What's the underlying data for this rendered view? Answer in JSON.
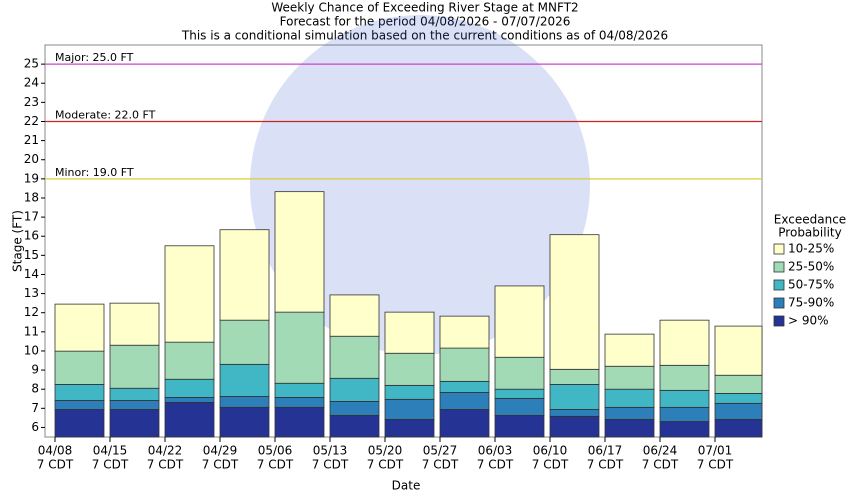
{
  "chart_data": {
    "type": "bar",
    "title": "Weekly Chance of Exceeding River Stage at MNFT2",
    "subtitle": "Forecast for the period 04/08/2026 - 07/07/2026",
    "note": "This is a conditional simulation based on the current conditions as of 04/08/2026",
    "x_label": "Date",
    "y_label": "Stage (FT)",
    "categories": [
      "04/08",
      "04/15",
      "04/22",
      "04/29",
      "05/06",
      "05/13",
      "05/20",
      "05/27",
      "06/03",
      "06/10",
      "06/17",
      "06/24",
      "07/01"
    ],
    "category_time": "7 CDT",
    "legend_title": [
      "Exceedance",
      "Probability"
    ],
    "series": [
      {
        "name": "> 90%",
        "color": "#253494",
        "values": [
          6.94,
          6.94,
          7.31,
          7.05,
          7.05,
          6.63,
          6.42,
          6.94,
          6.63,
          6.58,
          6.42,
          6.31,
          6.42
        ]
      },
      {
        "name": "75-90%",
        "color": "#2c7fb8",
        "values": [
          7.41,
          7.41,
          7.57,
          7.62,
          7.57,
          7.36,
          7.47,
          7.83,
          7.52,
          6.94,
          7.05,
          7.05,
          7.26
        ]
      },
      {
        "name": "50-75%",
        "color": "#41b6c4",
        "values": [
          8.25,
          8.05,
          8.52,
          9.3,
          8.31,
          8.57,
          8.2,
          8.41,
          8.0,
          8.25,
          8.0,
          7.94,
          7.78
        ]
      },
      {
        "name": "25-50%",
        "color": "#a1dab4",
        "values": [
          9.99,
          10.3,
          10.46,
          11.61,
          12.03,
          10.77,
          9.88,
          10.15,
          9.67,
          9.04,
          9.2,
          9.25,
          8.73
        ]
      },
      {
        "name": "10-25%",
        "color": "#ffffcc",
        "values": [
          12.45,
          12.5,
          15.5,
          16.34,
          18.33,
          12.93,
          12.03,
          11.82,
          13.4,
          16.08,
          10.88,
          11.61,
          11.3
        ]
      }
    ],
    "flood_levels": [
      {
        "label": "Major: 25.0 FT",
        "value": 25,
        "color": "#cc44cc"
      },
      {
        "label": "Moderate: 22.0 FT",
        "value": 22,
        "color": "#cc2222"
      },
      {
        "label": "Minor: 19.0 FT",
        "value": 19,
        "color": "#ddcc33"
      }
    ],
    "ylim": [
      5.5,
      26
    ],
    "yticks": [
      6,
      7,
      8,
      9,
      10,
      11,
      12,
      13,
      14,
      15,
      16,
      17,
      18,
      19,
      20,
      21,
      22,
      23,
      24,
      25
    ],
    "legend": "right"
  }
}
